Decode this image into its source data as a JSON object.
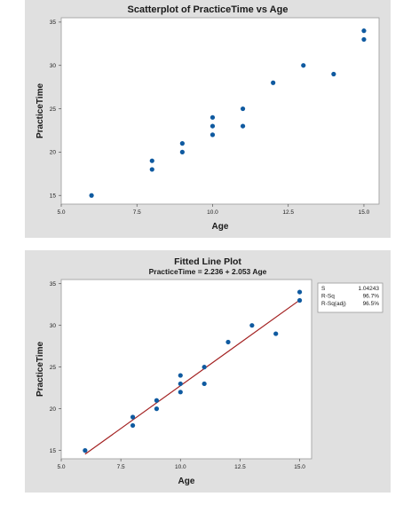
{
  "chart_data": [
    {
      "type": "scatter",
      "title": "Scatterplot of PracticeTime vs Age",
      "xlabel": "Age",
      "ylabel": "PracticeTime",
      "xlim": [
        5.0,
        15.5
      ],
      "ylim": [
        14.0,
        35.5
      ],
      "xticks": [
        "5.0",
        "7.5",
        "10.0",
        "12.5",
        "15.0"
      ],
      "yticks": [
        "15",
        "20",
        "25",
        "30",
        "35"
      ],
      "grid": false,
      "colors": {
        "marker": "#0f5aa0",
        "plot_bg": "#ffffff",
        "panel_bg": "#e0e0e0"
      },
      "points": [
        {
          "x": 6,
          "y": 15
        },
        {
          "x": 8,
          "y": 18
        },
        {
          "x": 8,
          "y": 19
        },
        {
          "x": 9,
          "y": 20
        },
        {
          "x": 9,
          "y": 21
        },
        {
          "x": 10,
          "y": 22
        },
        {
          "x": 10,
          "y": 23
        },
        {
          "x": 10,
          "y": 24
        },
        {
          "x": 11,
          "y": 23
        },
        {
          "x": 11,
          "y": 25
        },
        {
          "x": 12,
          "y": 28
        },
        {
          "x": 13,
          "y": 30
        },
        {
          "x": 14,
          "y": 29
        },
        {
          "x": 15,
          "y": 33
        },
        {
          "x": 15,
          "y": 34
        }
      ]
    },
    {
      "type": "scatter",
      "title": "Fitted Line Plot",
      "subtitle": "PracticeTime = 2.236 + 2.053 Age",
      "xlabel": "Age",
      "ylabel": "PracticeTime",
      "xlim": [
        5.0,
        15.5
      ],
      "ylim": [
        14.0,
        35.5
      ],
      "xticks": [
        "5.0",
        "7.5",
        "10.0",
        "12.5",
        "15.0"
      ],
      "yticks": [
        "15",
        "20",
        "25",
        "30",
        "35"
      ],
      "grid": false,
      "colors": {
        "marker": "#0f5aa0",
        "fit_line": "#a32020",
        "plot_bg": "#ffffff",
        "panel_bg": "#e0e0e0"
      },
      "fit": {
        "intercept": 2.236,
        "slope": 2.053,
        "x_from": 6,
        "x_to": 15
      },
      "stats_table": [
        {
          "label": "S",
          "value": "1.04243"
        },
        {
          "label": "R-Sq",
          "value": "96.7%"
        },
        {
          "label": "R-Sq(adj)",
          "value": "96.5%"
        }
      ],
      "points": [
        {
          "x": 6,
          "y": 15
        },
        {
          "x": 8,
          "y": 18
        },
        {
          "x": 8,
          "y": 19
        },
        {
          "x": 9,
          "y": 20
        },
        {
          "x": 9,
          "y": 21
        },
        {
          "x": 10,
          "y": 22
        },
        {
          "x": 10,
          "y": 23
        },
        {
          "x": 10,
          "y": 24
        },
        {
          "x": 11,
          "y": 23
        },
        {
          "x": 11,
          "y": 25
        },
        {
          "x": 12,
          "y": 28
        },
        {
          "x": 13,
          "y": 30
        },
        {
          "x": 14,
          "y": 29
        },
        {
          "x": 15,
          "y": 33
        },
        {
          "x": 15,
          "y": 34
        }
      ]
    }
  ]
}
